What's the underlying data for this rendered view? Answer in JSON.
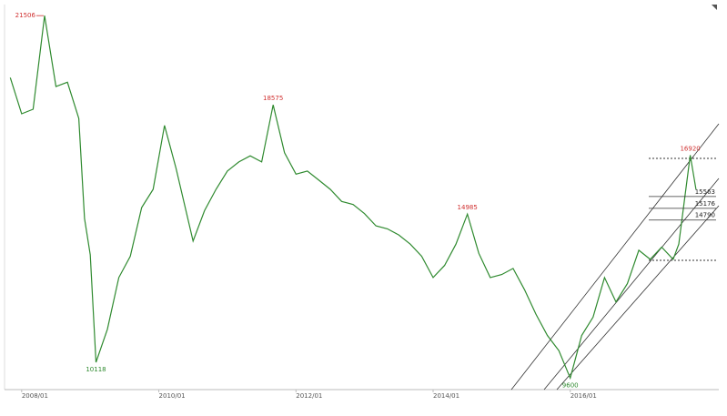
{
  "chart_data": {
    "type": "line",
    "x": [
      "2007/11",
      "2008/01",
      "2008/03",
      "2008/05",
      "2008/07",
      "2008/09",
      "2008/11",
      "2008/12",
      "2009/01",
      "2009/02",
      "2009/04",
      "2009/06",
      "2009/08",
      "2009/10",
      "2009/12",
      "2010/02",
      "2010/04",
      "2010/07",
      "2010/09",
      "2010/11",
      "2011/01",
      "2011/03",
      "2011/05",
      "2011/07",
      "2011/09",
      "2011/11",
      "2012/01",
      "2012/03",
      "2012/05",
      "2012/07",
      "2012/09",
      "2012/11",
      "2013/01",
      "2013/03",
      "2013/05",
      "2013/07",
      "2013/09",
      "2013/11",
      "2014/01",
      "2014/03",
      "2014/05",
      "2014/07",
      "2014/09",
      "2014/11",
      "2015/01",
      "2015/03",
      "2015/05",
      "2015/07",
      "2015/09",
      "2015/11",
      "2016/01",
      "2016/03",
      "2016/05",
      "2016/07",
      "2016/09",
      "2016/11",
      "2017/01",
      "2017/03",
      "2017/05",
      "2017/07",
      "2017/08",
      "2017/10",
      "2017/11"
    ],
    "series": [
      {
        "color": "#2f8a2f",
        "values": [
          19470,
          18280,
          18430,
          21506,
          19180,
          19320,
          18130,
          14840,
          13650,
          10118,
          11200,
          12900,
          13600,
          15200,
          15800,
          17900,
          16500,
          14100,
          15100,
          15800,
          16400,
          16700,
          16900,
          16700,
          18575,
          17000,
          16300,
          16400,
          16100,
          15800,
          15400,
          15300,
          15000,
          14600,
          14500,
          14300,
          14000,
          13600,
          12900,
          13300,
          14000,
          14985,
          13700,
          12900,
          13000,
          13200,
          12500,
          11700,
          11000,
          10500,
          9600,
          11000,
          11600,
          12900,
          12100,
          12700,
          13800,
          13500,
          13900,
          13500,
          14000,
          16920,
          15800
        ]
      }
    ],
    "xlim": [
      "2007/10",
      "2018/03"
    ],
    "ylim": [
      9220,
      21870
    ],
    "xticks": [
      "2008/01",
      "2010/01",
      "2012/01",
      "2014/01",
      "2016/01"
    ],
    "annotations": [
      {
        "x": "2008/05",
        "value": 21506,
        "color": "#d03030"
      },
      {
        "x": "2011/09",
        "value": 18575,
        "color": "#d03030"
      },
      {
        "x": "2014/07",
        "value": 14985,
        "color": "#d03030"
      },
      {
        "x": "2017/10",
        "value": 16920,
        "color": "#d03030"
      },
      {
        "x": "2009/02",
        "value": 10118,
        "color": "#2f8a2f"
      },
      {
        "x": "2016/01",
        "value": 9600,
        "color": "#2f8a2f"
      }
    ],
    "levels": [
      15563,
      15176,
      14790
    ]
  }
}
